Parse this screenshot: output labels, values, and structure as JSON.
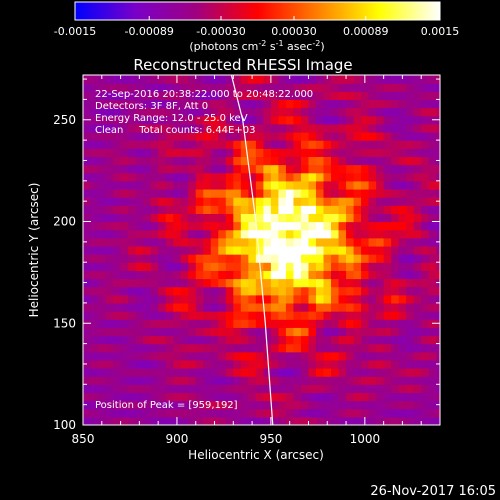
{
  "chart_data": {
    "type": "heatmap",
    "title": "Reconstructed RHESSI Image",
    "xlabel": "Heliocentric X (arcsec)",
    "ylabel": "Heliocentric Y (arcsec)",
    "xlim": [
      850,
      1040
    ],
    "ylim": [
      100,
      272
    ],
    "x_ticks": [
      850,
      900,
      950,
      1000
    ],
    "y_ticks": [
      100,
      150,
      200,
      250
    ],
    "colorbar": {
      "min": -0.0015,
      "max": 0.0015,
      "tick_values": [
        -0.0015,
        -0.00089,
        -0.0003,
        0.0003,
        0.00089,
        0.0015
      ],
      "tick_labels": [
        "-0.0015",
        "-0.00089",
        "-0.00030",
        "0.00030",
        "0.00089",
        "0.0015"
      ],
      "units": "(photons cm",
      "units_exp1": "-2",
      "units_mid": " s",
      "units_exp2": "-1",
      "units_mid2": " asec",
      "units_exp3": "-2",
      "units_end": ")",
      "colors": [
        "#0000ff",
        "#7a00c8",
        "#a00080",
        "#ff0000",
        "#ff8000",
        "#ffff00",
        "#ffffff"
      ]
    },
    "annotations": {
      "time": "22-Sep-2016 20:38:22.000 to 20:48:22.000",
      "detectors": "Detectors: 3F 8F, Att 0",
      "energy": "Energy Range: 12.0 - 25.0 keV",
      "clean": "Clean     Total counts: 6.44E+03",
      "peak": "Position of Peak = [959,192]"
    },
    "peak": [
      959,
      192
    ],
    "limb_curve": [
      [
        929,
        272
      ],
      [
        935,
        250
      ],
      [
        942,
        200
      ],
      [
        947,
        150
      ],
      [
        951,
        100
      ]
    ],
    "footer": "26-Nov-2017 16:05"
  }
}
